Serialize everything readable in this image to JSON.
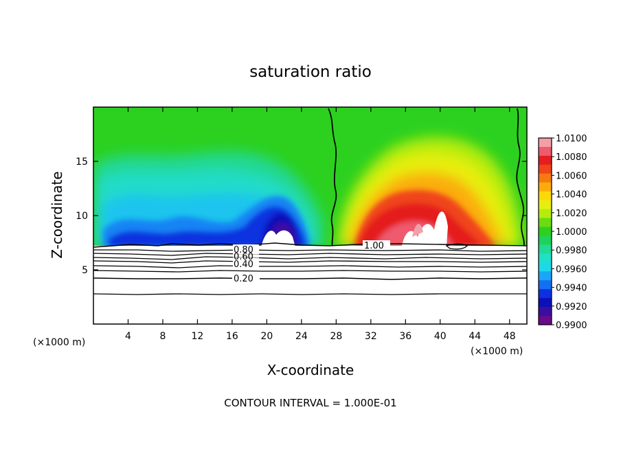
{
  "chart_data": {
    "type": "contour",
    "title": "saturation ratio",
    "xlabel": "X-coordinate",
    "ylabel": "Z-coordinate",
    "x_unit": "(×1000 m)",
    "footer": "CONTOUR INTERVAL = 1.000E-01",
    "xlim": [
      0,
      50
    ],
    "ylim": [
      0,
      20
    ],
    "x_ticks": [
      4,
      8,
      12,
      16,
      20,
      24,
      28,
      32,
      36,
      40,
      44,
      48
    ],
    "y_ticks": [
      5,
      10,
      15
    ],
    "colorbar": {
      "ticks": [
        "1.0100",
        "1.0080",
        "1.0060",
        "1.0040",
        "1.0020",
        "1.0000",
        "0.9980",
        "0.9960",
        "0.9940",
        "0.9920",
        "0.9900"
      ],
      "colors": [
        "#f2a0a8",
        "#ee5a6e",
        "#e41e1e",
        "#f0441a",
        "#f77a10",
        "#fbac0c",
        "#fdd808",
        "#e6ee10",
        "#b4ec10",
        "#6adc10",
        "#2ed020",
        "#20d25a",
        "#22da96",
        "#20e0c8",
        "#1ed8ea",
        "#1aa6f4",
        "#1470f2",
        "#0f30e0",
        "#0c10b8",
        "#3c0ea0",
        "#6a0a8c"
      ]
    },
    "contour_labels": [
      "0.80",
      "0.60",
      "0.40",
      "0.20",
      "1.00"
    ]
  }
}
